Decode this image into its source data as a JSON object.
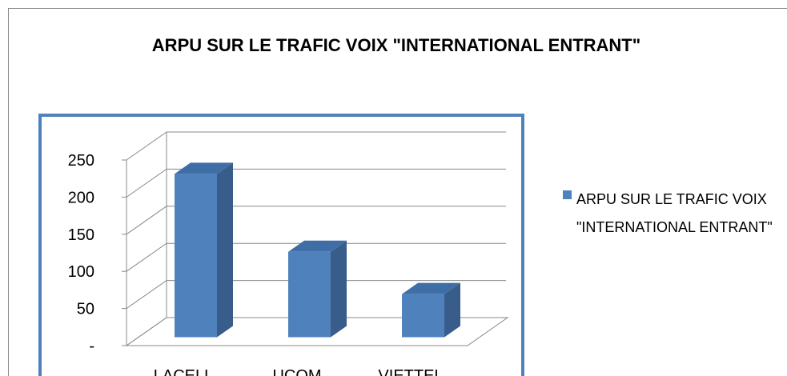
{
  "chart_data": {
    "type": "bar3d",
    "title": "ARPU   SUR LE TRAFIC VOIX \"INTERNATIONAL ENTRANT\"",
    "categories": [
      "LACELL",
      "UCOM",
      "VIETTEL"
    ],
    "series": [
      {
        "name": "ARPU   SUR LE TRAFIC VOIX \"INTERNATIONAL ENTRANT\"",
        "color": "#4f81bd",
        "values": [
          220,
          115,
          58
        ]
      }
    ],
    "ylim": [
      0,
      250
    ],
    "yticks": [
      {
        "value": 0,
        "label": "-"
      },
      50,
      100,
      150,
      200,
      250
    ],
    "grid": true,
    "legend": "right"
  }
}
